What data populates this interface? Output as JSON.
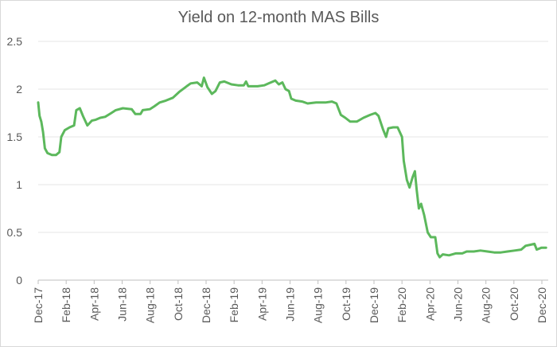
{
  "chart_data": {
    "type": "line",
    "title": "Yield on 12-month MAS Bills",
    "xlabel": "",
    "ylabel": "",
    "ylim": [
      0,
      2.5
    ],
    "y_ticks": [
      "0",
      "0.5",
      "1",
      "1.5",
      "2",
      "2.5"
    ],
    "x_ticks": [
      "Dec-17",
      "Feb-18",
      "Apr-18",
      "Jun-18",
      "Aug-18",
      "Oct-18",
      "Dec-18",
      "Feb-19",
      "Apr-19",
      "Jun-19",
      "Aug-19",
      "Oct-19",
      "Dec-19",
      "Feb-20",
      "Apr-20",
      "Jun-20",
      "Aug-20",
      "Oct-20",
      "Dec-20"
    ],
    "grid": true,
    "legend": "none",
    "color": "#5cb85c",
    "series": [
      {
        "name": "",
        "points": [
          [
            "2017-12-01",
            1.86
          ],
          [
            "2017-12-04",
            1.72
          ],
          [
            "2017-12-08",
            1.66
          ],
          [
            "2017-12-12",
            1.55
          ],
          [
            "2017-12-16",
            1.38
          ],
          [
            "2017-12-22",
            1.33
          ],
          [
            "2018-01-01",
            1.31
          ],
          [
            "2018-01-10",
            1.31
          ],
          [
            "2018-01-18",
            1.34
          ],
          [
            "2018-01-22",
            1.5
          ],
          [
            "2018-01-30",
            1.57
          ],
          [
            "2018-02-10",
            1.6
          ],
          [
            "2018-02-20",
            1.62
          ],
          [
            "2018-02-25",
            1.78
          ],
          [
            "2018-03-05",
            1.8
          ],
          [
            "2018-03-12",
            1.72
          ],
          [
            "2018-03-22",
            1.62
          ],
          [
            "2018-04-01",
            1.67
          ],
          [
            "2018-04-10",
            1.68
          ],
          [
            "2018-04-20",
            1.7
          ],
          [
            "2018-05-01",
            1.71
          ],
          [
            "2018-05-15",
            1.75
          ],
          [
            "2018-05-25",
            1.78
          ],
          [
            "2018-06-10",
            1.8
          ],
          [
            "2018-06-30",
            1.79
          ],
          [
            "2018-07-08",
            1.74
          ],
          [
            "2018-07-20",
            1.74
          ],
          [
            "2018-07-25",
            1.78
          ],
          [
            "2018-08-10",
            1.79
          ],
          [
            "2018-08-20",
            1.82
          ],
          [
            "2018-09-01",
            1.86
          ],
          [
            "2018-09-15",
            1.88
          ],
          [
            "2018-10-01",
            1.91
          ],
          [
            "2018-10-15",
            1.97
          ],
          [
            "2018-11-01",
            2.03
          ],
          [
            "2018-11-10",
            2.06
          ],
          [
            "2018-11-25",
            2.07
          ],
          [
            "2018-12-05",
            2.03
          ],
          [
            "2018-12-10",
            2.12
          ],
          [
            "2018-12-18",
            2.02
          ],
          [
            "2018-12-28",
            1.95
          ],
          [
            "2019-01-05",
            1.98
          ],
          [
            "2019-01-15",
            2.07
          ],
          [
            "2019-01-25",
            2.08
          ],
          [
            "2019-02-10",
            2.05
          ],
          [
            "2019-02-25",
            2.04
          ],
          [
            "2019-03-10",
            2.04
          ],
          [
            "2019-03-15",
            2.08
          ],
          [
            "2019-03-20",
            2.03
          ],
          [
            "2019-04-10",
            2.03
          ],
          [
            "2019-04-25",
            2.04
          ],
          [
            "2019-05-05",
            2.06
          ],
          [
            "2019-05-20",
            2.09
          ],
          [
            "2019-05-28",
            2.05
          ],
          [
            "2019-06-05",
            2.07
          ],
          [
            "2019-06-12",
            2.0
          ],
          [
            "2019-06-20",
            1.98
          ],
          [
            "2019-06-25",
            1.9
          ],
          [
            "2019-07-05",
            1.88
          ],
          [
            "2019-07-20",
            1.87
          ],
          [
            "2019-08-01",
            1.85
          ],
          [
            "2019-08-20",
            1.86
          ],
          [
            "2019-09-10",
            1.86
          ],
          [
            "2019-09-25",
            1.87
          ],
          [
            "2019-10-05",
            1.85
          ],
          [
            "2019-10-15",
            1.73
          ],
          [
            "2019-10-25",
            1.7
          ],
          [
            "2019-11-05",
            1.66
          ],
          [
            "2019-11-20",
            1.66
          ],
          [
            "2019-12-05",
            1.7
          ],
          [
            "2019-12-20",
            1.73
          ],
          [
            "2020-01-01",
            1.75
          ],
          [
            "2020-01-08",
            1.72
          ],
          [
            "2020-01-18",
            1.58
          ],
          [
            "2020-01-25",
            1.5
          ],
          [
            "2020-01-30",
            1.59
          ],
          [
            "2020-02-10",
            1.6
          ],
          [
            "2020-02-20",
            1.6
          ],
          [
            "2020-03-01",
            1.5
          ],
          [
            "2020-03-05",
            1.25
          ],
          [
            "2020-03-12",
            1.05
          ],
          [
            "2020-03-18",
            0.97
          ],
          [
            "2020-03-25",
            1.08
          ],
          [
            "2020-03-30",
            1.14
          ],
          [
            "2020-04-03",
            0.95
          ],
          [
            "2020-04-08",
            0.75
          ],
          [
            "2020-04-13",
            0.8
          ],
          [
            "2020-04-20",
            0.68
          ],
          [
            "2020-04-28",
            0.5
          ],
          [
            "2020-05-05",
            0.45
          ],
          [
            "2020-05-15",
            0.45
          ],
          [
            "2020-05-20",
            0.28
          ],
          [
            "2020-05-25",
            0.24
          ],
          [
            "2020-06-01",
            0.27
          ],
          [
            "2020-06-15",
            0.26
          ],
          [
            "2020-06-30",
            0.28
          ],
          [
            "2020-07-15",
            0.28
          ],
          [
            "2020-07-25",
            0.3
          ],
          [
            "2020-08-10",
            0.3
          ],
          [
            "2020-08-25",
            0.31
          ],
          [
            "2020-09-10",
            0.3
          ],
          [
            "2020-09-25",
            0.29
          ],
          [
            "2020-10-10",
            0.29
          ],
          [
            "2020-10-25",
            0.3
          ],
          [
            "2020-11-10",
            0.31
          ],
          [
            "2020-11-25",
            0.32
          ],
          [
            "2020-12-05",
            0.36
          ],
          [
            "2020-12-15",
            0.37
          ],
          [
            "2020-12-25",
            0.38
          ],
          [
            "2020-12-30",
            0.32
          ],
          [
            "2021-01-10",
            0.34
          ],
          [
            "2021-01-20",
            0.34
          ]
        ]
      }
    ]
  }
}
